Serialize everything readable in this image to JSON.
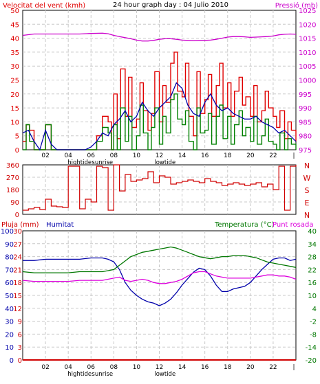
{
  "colors": {
    "wind": "#e00000",
    "wind_avg": "#008000",
    "wind_dir": "#d00000",
    "pressure": "#cc00cc",
    "rain": "#d00000",
    "humidity": "#0000aa",
    "temperature": "#007700",
    "dewpoint": "#dd00dd",
    "title": "#000000"
  },
  "time_ticks": [
    "02",
    "04",
    "06",
    "08",
    "10",
    "12",
    "14",
    "16",
    "18",
    "20",
    "22"
  ],
  "tide_labels": [
    "hightide",
    "sunrise",
    "lowtide"
  ],
  "end_marker": "|",
  "chart_data": [
    {
      "type": "line",
      "title": "24 hour graph day : 04 Julio 2010",
      "ylabel_left": "Velocitat del vent (kmh)",
      "ylabel_right": "Pressió (mb)",
      "xlim": [
        0,
        24
      ],
      "ylim_left": [
        0,
        50
      ],
      "ylim_right": [
        975,
        1025
      ],
      "left_ticks": [
        "50",
        "45",
        "40",
        "35",
        "30",
        "25",
        "20",
        "15",
        "10",
        "5",
        "0"
      ],
      "right_ticks": [
        "1025",
        "1020",
        "1015",
        "1010",
        "1005",
        "1000",
        "995",
        "990",
        "985",
        "980",
        "975"
      ],
      "series": [
        {
          "key": "pressure",
          "axis": "right",
          "x": [
            0,
            1,
            2,
            3,
            4,
            5,
            6,
            7,
            7.5,
            8,
            8.5,
            9,
            9.5,
            10,
            10.5,
            11,
            11.5,
            12,
            12.5,
            13,
            13.5,
            14,
            14.5,
            15,
            15.5,
            16,
            16.5,
            17,
            17.5,
            18,
            18.5,
            19,
            19.5,
            20,
            20.5,
            21,
            21.5,
            22,
            22.5,
            23,
            23.5,
            24
          ],
          "y": [
            1016,
            1016.5,
            1016.5,
            1016.5,
            1016.5,
            1016.5,
            1016.7,
            1016.8,
            1016.6,
            1016,
            1015.6,
            1015.2,
            1014.8,
            1014.3,
            1014,
            1014,
            1014.2,
            1014.6,
            1014.8,
            1014.8,
            1014.6,
            1014.3,
            1014.2,
            1014.1,
            1014.2,
            1014.2,
            1014.3,
            1014.6,
            1015,
            1015.4,
            1015.6,
            1015.6,
            1015.5,
            1015.3,
            1015.4,
            1015.5,
            1015.6,
            1015.8,
            1016.2,
            1016.4,
            1016.5,
            1016.4
          ]
        },
        {
          "key": "wind",
          "axis": "left",
          "x": [
            0,
            0.3,
            0.6,
            1,
            1.5,
            2,
            2.5,
            3,
            3.5,
            4,
            4.5,
            5,
            5.5,
            6,
            6.5,
            7,
            7.5,
            7.8,
            8,
            8.3,
            8.6,
            9,
            9.3,
            9.6,
            10,
            10.3,
            10.6,
            11,
            11.3,
            11.6,
            12,
            12.3,
            12.6,
            13,
            13.3,
            13.6,
            14,
            14.3,
            14.6,
            15,
            15.3,
            15.6,
            16,
            16.3,
            16.6,
            17,
            17.3,
            17.6,
            18,
            18.3,
            18.6,
            19,
            19.3,
            19.6,
            20,
            20.3,
            20.6,
            21,
            21.3,
            21.6,
            22,
            22.3,
            22.6,
            23,
            23.3,
            23.6,
            24
          ],
          "y": [
            3,
            9,
            7,
            0,
            0,
            9,
            0,
            0,
            0,
            0,
            0,
            0,
            0,
            0,
            5,
            12,
            10,
            0,
            20,
            4,
            29,
            12,
            26,
            8,
            11,
            24,
            14,
            7,
            13,
            28,
            10,
            23,
            17,
            31,
            35,
            21,
            19,
            31,
            12,
            5,
            28,
            13,
            18,
            27,
            12,
            23,
            31,
            15,
            24,
            12,
            21,
            26,
            16,
            19,
            12,
            23,
            10,
            14,
            21,
            15,
            12,
            8,
            14,
            4,
            10,
            7,
            3
          ]
        },
        {
          "key": "wind_avg",
          "axis": "left",
          "x": [
            0,
            0.3,
            0.6,
            1,
            1.5,
            2,
            2.5,
            3,
            3.5,
            4,
            4.5,
            5,
            5.5,
            6,
            6.5,
            7,
            7.5,
            7.8,
            8,
            8.3,
            8.6,
            9,
            9.3,
            9.6,
            10,
            10.3,
            10.6,
            11,
            11.3,
            11.6,
            12,
            12.3,
            12.6,
            13,
            13.3,
            13.6,
            14,
            14.3,
            14.6,
            15,
            15.3,
            15.6,
            16,
            16.3,
            16.6,
            17,
            17.3,
            17.6,
            18,
            18.3,
            18.6,
            19,
            19.3,
            19.6,
            20,
            20.3,
            20.6,
            21,
            21.3,
            21.6,
            22,
            22.3,
            22.6,
            23,
            23.3,
            23.6,
            24
          ],
          "y": [
            0,
            9,
            3,
            0,
            0,
            9,
            0,
            0,
            0,
            0,
            0,
            0,
            0,
            0,
            3,
            8,
            6,
            0,
            9,
            0,
            15,
            3,
            12,
            0,
            5,
            16,
            6,
            0,
            8,
            15,
            2,
            12,
            6,
            18,
            20,
            11,
            9,
            14,
            3,
            0,
            15,
            6,
            7,
            13,
            2,
            12,
            16,
            4,
            12,
            2,
            9,
            14,
            5,
            8,
            3,
            12,
            2,
            5,
            11,
            3,
            2,
            0,
            6,
            0,
            4,
            2,
            0
          ]
        },
        {
          "key": "wind_avg_blue",
          "axis": "left",
          "x": [
            0,
            0.5,
            1,
            1.5,
            2,
            2.5,
            3,
            3.5,
            4,
            4.5,
            5,
            5.5,
            6,
            6.5,
            7,
            7.5,
            8,
            8.5,
            9,
            9.5,
            10,
            10.5,
            11,
            11.5,
            12,
            12.5,
            13,
            13.5,
            14,
            14.5,
            15,
            15.5,
            16,
            16.5,
            17,
            17.5,
            18,
            18.5,
            19,
            19.5,
            20,
            20.5,
            21,
            21.5,
            22,
            22.5,
            23,
            23.5,
            24
          ],
          "y": [
            6,
            7,
            3,
            0,
            7,
            2,
            0,
            0,
            0,
            0,
            0,
            0,
            1,
            3,
            6,
            5,
            9,
            11,
            14,
            10,
            12,
            17,
            14,
            12,
            15,
            17,
            19,
            24,
            22,
            16,
            13,
            12,
            17,
            20,
            16,
            14,
            15,
            13,
            12,
            11,
            11,
            12,
            10,
            9,
            8,
            6,
            7,
            5,
            3
          ]
        }
      ]
    },
    {
      "type": "line",
      "xlim": [
        0,
        24
      ],
      "ylim": [
        0,
        360
      ],
      "left_ticks": [
        "360",
        "270",
        "180",
        "90",
        "0"
      ],
      "right_ticks": [
        "N",
        "W",
        "S",
        "E",
        "N"
      ],
      "series": [
        {
          "key": "wind_dir",
          "x": [
            0,
            0.5,
            1,
            1.5,
            2,
            2.5,
            3,
            3.5,
            4,
            4.5,
            5,
            5.5,
            6,
            6.5,
            7,
            7.5,
            8,
            8.5,
            9,
            9.5,
            10,
            10.5,
            11,
            11.5,
            12,
            12.5,
            13,
            13.5,
            14,
            14.5,
            15,
            15.5,
            16,
            16.5,
            17,
            17.5,
            18,
            18.5,
            19,
            19.5,
            20,
            20.5,
            21,
            21.5,
            22,
            22.5,
            23,
            23.5,
            24
          ],
          "y": [
            30,
            40,
            50,
            35,
            110,
            60,
            55,
            50,
            350,
            350,
            40,
            110,
            90,
            350,
            340,
            30,
            360,
            170,
            290,
            240,
            250,
            260,
            310,
            230,
            280,
            270,
            220,
            230,
            240,
            250,
            240,
            230,
            260,
            240,
            230,
            210,
            220,
            230,
            220,
            210,
            220,
            230,
            200,
            220,
            180,
            350,
            30,
            350,
            360
          ]
        }
      ]
    },
    {
      "type": "line",
      "ylabel_left": "Pluja (mm)",
      "ylabel_left2": "Humitat",
      "ylabel_right": "Temperatura (°C)",
      "ylabel_right2": "Punt rosada",
      "xlim": [
        0,
        24
      ],
      "ylim_temp": [
        -20,
        40
      ],
      "ylim_humidity": [
        0,
        100
      ],
      "ylim_rain": [
        0,
        30
      ],
      "rain_ticks": [
        "30",
        "27",
        "24",
        "21",
        "18",
        "15",
        "12",
        "9",
        "6",
        "3",
        "0"
      ],
      "humidity_ticks": [
        "100",
        "90",
        "80",
        "70",
        "60",
        "50",
        "40",
        "30",
        "20",
        "10",
        "0"
      ],
      "temp_ticks": [
        "40",
        "34",
        "28",
        "22",
        "16",
        "10",
        "4",
        "-2",
        "-8",
        "-14",
        "-20"
      ],
      "series": [
        {
          "key": "rain",
          "axis": "rain",
          "x": [
            0,
            24
          ],
          "y": [
            0,
            0
          ]
        },
        {
          "key": "humidity",
          "axis": "humidity",
          "x": [
            0,
            1,
            2,
            3,
            4,
            5,
            6,
            7,
            7.5,
            8,
            8.5,
            9,
            9.5,
            10,
            10.5,
            11,
            11.5,
            12,
            12.5,
            13,
            13.5,
            14,
            14.5,
            15,
            15.5,
            16,
            16.5,
            17,
            17.5,
            18,
            18.5,
            19,
            19.5,
            20,
            20.5,
            21,
            21.5,
            22,
            22.5,
            23,
            23.5,
            24
          ],
          "y": [
            77,
            77,
            78,
            78,
            78,
            78,
            79,
            79,
            78,
            76,
            70,
            60,
            54,
            50,
            47,
            45,
            44,
            42,
            44,
            47,
            52,
            58,
            63,
            68,
            71,
            70,
            65,
            58,
            53,
            53,
            55,
            56,
            57,
            60,
            65,
            70,
            74,
            78,
            79,
            79,
            77,
            78
          ]
        },
        {
          "key": "temperature",
          "axis": "temp",
          "x": [
            0,
            1,
            2,
            3,
            4,
            5,
            6,
            7,
            7.5,
            8,
            8.5,
            9,
            9.5,
            10,
            10.5,
            11,
            11.5,
            12,
            12.5,
            13,
            13.5,
            14,
            14.5,
            15,
            15.5,
            16,
            16.5,
            17,
            17.5,
            18,
            18.5,
            19,
            19.5,
            20,
            20.5,
            21,
            21.5,
            22,
            22.5,
            23,
            23.5,
            24
          ],
          "y": [
            21,
            20.5,
            20.5,
            20.5,
            20.5,
            21,
            21,
            21,
            21.5,
            22,
            24,
            26,
            28,
            29,
            30,
            30.5,
            31,
            31.5,
            32,
            32.5,
            32,
            31,
            30,
            29,
            28,
            27.5,
            27,
            27.5,
            28,
            28,
            28.5,
            28.5,
            28.5,
            28,
            27.5,
            26.5,
            25.5,
            25,
            24.5,
            24,
            23.5,
            23
          ]
        },
        {
          "key": "dewpoint",
          "axis": "temp",
          "x": [
            0,
            1,
            2,
            3,
            4,
            5,
            6,
            7,
            7.5,
            8,
            8.5,
            9,
            9.5,
            10,
            10.5,
            11,
            11.5,
            12,
            12.5,
            13,
            13.5,
            14,
            14.5,
            15,
            15.5,
            16,
            16.5,
            17,
            17.5,
            18,
            18.5,
            19,
            19.5,
            20,
            20.5,
            21,
            21.5,
            22,
            22.5,
            23,
            23.5,
            24
          ],
          "y": [
            17,
            16.5,
            16.5,
            16.5,
            16.5,
            17,
            17,
            17,
            17.5,
            18,
            18.5,
            17,
            16.5,
            17,
            17.5,
            17,
            16,
            15.5,
            15.5,
            16,
            16.5,
            17.5,
            19,
            20.5,
            21,
            21,
            20,
            19,
            18.5,
            18,
            18,
            18,
            18,
            18,
            18.5,
            19,
            19.5,
            19.5,
            19,
            19,
            18.5,
            17.5
          ]
        }
      ]
    }
  ]
}
